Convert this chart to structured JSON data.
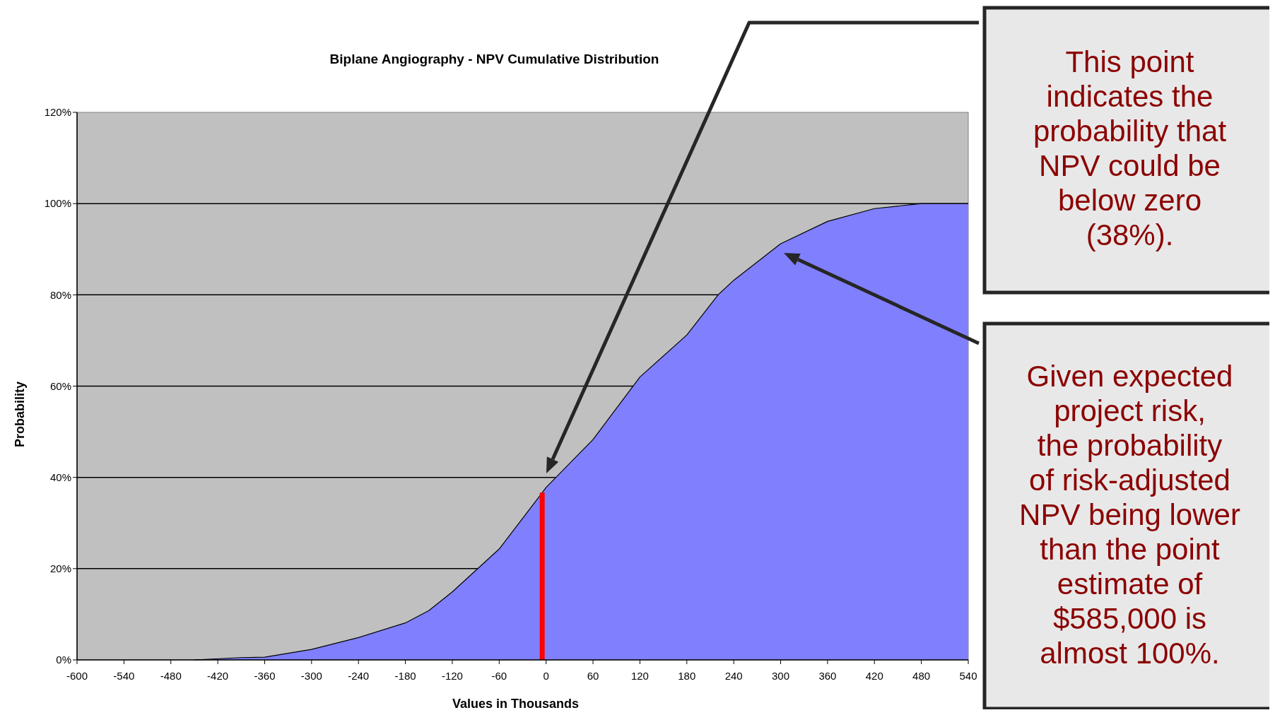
{
  "chart_data": {
    "type": "area",
    "title": "Biplane Angiography - NPV Cumulative Distribution",
    "xlabel": "Values in Thousands",
    "ylabel": "Probability",
    "x": [
      -450,
      -390,
      -360,
      -300,
      -240,
      -180,
      -150,
      -120,
      -60,
      -10,
      0,
      60,
      120,
      180,
      220,
      240,
      300,
      360,
      420,
      480,
      540
    ],
    "series": [
      {
        "color": "#8080ff",
        "values": [
          0,
          0.5,
          0.6,
          2.3,
          4.9,
          8.1,
          10.8,
          14.9,
          24.3,
          35.5,
          37.8,
          48.3,
          62,
          71.2,
          80,
          83.2,
          91.2,
          96.1,
          98.9,
          100,
          100
        ]
      }
    ],
    "xlim": [
      -600,
      540
    ],
    "xticks": [
      -600,
      -540,
      -480,
      -420,
      -360,
      -300,
      -240,
      -180,
      -120,
      -60,
      0,
      60,
      120,
      180,
      240,
      300,
      360,
      420,
      480,
      540
    ],
    "ylim": [
      0,
      120
    ],
    "yticks": [
      {
        "value": 0,
        "label": "0%"
      },
      {
        "value": 20,
        "label": "20%"
      },
      {
        "value": 40,
        "label": "40%"
      },
      {
        "value": 60,
        "label": "60%"
      },
      {
        "value": 80,
        "label": "80%"
      },
      {
        "value": 100,
        "label": "100%"
      },
      {
        "value": 120,
        "label": "120%"
      }
    ],
    "grid": "y",
    "ref_lines": [
      {
        "axis": "x",
        "value": -5,
        "color": "#ff0000"
      }
    ],
    "annotations": [
      "This point indicates the probability that NPV could be below zero (38%).",
      "Given expected project risk, the probability of risk-adjusted NPV being lower than the point estimate of $585,000 is almost 100%."
    ]
  }
}
